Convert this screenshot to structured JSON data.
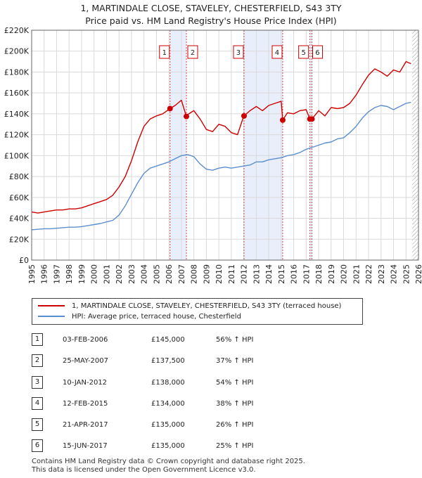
{
  "title_line1": "1, MARTINDALE CLOSE, STAVELEY, CHESTERFIELD, S43 3TY",
  "title_line2": "Price paid vs. HM Land Registry's House Price Index (HPI)",
  "colors": {
    "red": "#cc0000",
    "blue": "#5b8fcf",
    "grid": "#d9d9d9",
    "shade": "#e8eefa"
  },
  "chart_data": {
    "type": "line",
    "xlim": [
      1995,
      2026
    ],
    "ylim": [
      0,
      220000
    ],
    "y_ticks": [
      0,
      20000,
      40000,
      60000,
      80000,
      100000,
      120000,
      140000,
      160000,
      180000,
      200000,
      220000
    ],
    "y_tick_labels": [
      "£0",
      "£20K",
      "£40K",
      "£60K",
      "£80K",
      "£100K",
      "£120K",
      "£140K",
      "£160K",
      "£180K",
      "£200K",
      "£220K"
    ],
    "x_ticks": [
      1995,
      1996,
      1997,
      1998,
      1999,
      2000,
      2001,
      2002,
      2003,
      2004,
      2005,
      2006,
      2007,
      2008,
      2009,
      2010,
      2011,
      2012,
      2013,
      2014,
      2015,
      2016,
      2017,
      2018,
      2019,
      2020,
      2021,
      2022,
      2023,
      2024,
      2025,
      2026
    ],
    "x_tick_labels": [
      "1995",
      "1996",
      "1997",
      "1998",
      "1999",
      "2000",
      "2001",
      "2002",
      "2003",
      "2004",
      "2005",
      "2006",
      "2007",
      "2008",
      "2009",
      "2010",
      "2011",
      "2012",
      "2013",
      "2014",
      "2015",
      "2016",
      "2017",
      "2018",
      "2019",
      "2020",
      "2021",
      "2022",
      "2023",
      "2024",
      "2025",
      "2026"
    ],
    "series": [
      {
        "name": "1, MARTINDALE CLOSE, STAVELEY, CHESTERFIELD, S43 3TY (terraced house)",
        "color": "#cc0000",
        "x": [
          1995.0,
          1995.5,
          1996.0,
          1996.5,
          1997.0,
          1997.5,
          1998.0,
          1998.5,
          1999.0,
          1999.5,
          2000.0,
          2000.5,
          2001.0,
          2001.5,
          2002.0,
          2002.5,
          2003.0,
          2003.5,
          2004.0,
          2004.5,
          2005.0,
          2005.5,
          2006.09,
          2006.5,
          2007.0,
          2007.4,
          2007.6,
          2008.0,
          2008.5,
          2009.0,
          2009.5,
          2010.0,
          2010.5,
          2011.0,
          2011.5,
          2012.0,
          2012.02,
          2012.5,
          2013.0,
          2013.5,
          2014.0,
          2014.5,
          2015.0,
          2015.12,
          2015.5,
          2016.0,
          2016.5,
          2017.0,
          2017.3,
          2017.46,
          2017.8,
          2018.0,
          2018.5,
          2019.0,
          2019.5,
          2020.0,
          2020.5,
          2021.0,
          2021.5,
          2022.0,
          2022.5,
          2023.0,
          2023.5,
          2024.0,
          2024.5,
          2025.0,
          2025.4
        ],
        "y": [
          46000,
          45000,
          46000,
          47000,
          48000,
          48000,
          49000,
          49000,
          50000,
          52000,
          54000,
          56000,
          58000,
          62000,
          70000,
          80000,
          95000,
          113000,
          128000,
          135000,
          138000,
          140000,
          145000,
          148000,
          153000,
          137500,
          140000,
          143000,
          135000,
          125000,
          123000,
          130000,
          128000,
          122000,
          120000,
          138000,
          138000,
          143000,
          147000,
          143000,
          148000,
          150000,
          152000,
          134000,
          141000,
          140000,
          143000,
          144000,
          135000,
          135000,
          140000,
          143000,
          138000,
          146000,
          145000,
          146000,
          150000,
          158000,
          168000,
          177000,
          183000,
          180000,
          176000,
          182000,
          180000,
          190000,
          188000
        ]
      },
      {
        "name": "HPI: Average price, terraced house, Chesterfield",
        "color": "#5b8fcf",
        "x": [
          1995.0,
          1995.5,
          1996.0,
          1996.5,
          1997.0,
          1997.5,
          1998.0,
          1998.5,
          1999.0,
          1999.5,
          2000.0,
          2000.5,
          2001.0,
          2001.5,
          2002.0,
          2002.5,
          2003.0,
          2003.5,
          2004.0,
          2004.5,
          2005.0,
          2005.5,
          2006.0,
          2006.5,
          2007.0,
          2007.5,
          2008.0,
          2008.5,
          2009.0,
          2009.5,
          2010.0,
          2010.5,
          2011.0,
          2011.5,
          2012.0,
          2012.5,
          2013.0,
          2013.5,
          2014.0,
          2014.5,
          2015.0,
          2015.5,
          2016.0,
          2016.5,
          2017.0,
          2017.5,
          2018.0,
          2018.5,
          2019.0,
          2019.5,
          2020.0,
          2020.5,
          2021.0,
          2021.5,
          2022.0,
          2022.5,
          2023.0,
          2023.5,
          2024.0,
          2024.5,
          2025.0,
          2025.4
        ],
        "y": [
          29000,
          29500,
          30000,
          30000,
          30500,
          31000,
          31500,
          31500,
          32000,
          33000,
          34000,
          35000,
          36500,
          38000,
          43000,
          52000,
          63000,
          74000,
          83000,
          88000,
          90000,
          92000,
          94000,
          97000,
          100000,
          101000,
          99000,
          92000,
          87000,
          86000,
          88000,
          89000,
          88000,
          89000,
          90000,
          91000,
          94000,
          94000,
          96000,
          97000,
          98000,
          100000,
          101000,
          103000,
          106000,
          108000,
          110000,
          112000,
          113000,
          116000,
          117000,
          122000,
          128000,
          136000,
          142000,
          146000,
          148000,
          147000,
          144000,
          147000,
          150000,
          151000
        ]
      }
    ],
    "sale_markers": [
      {
        "id": "1",
        "x": 2006.09,
        "y": 145000
      },
      {
        "id": "2",
        "x": 2007.4,
        "y": 137500
      },
      {
        "id": "3",
        "x": 2012.02,
        "y": 138000
      },
      {
        "id": "4",
        "x": 2015.12,
        "y": 134000
      },
      {
        "id": "5",
        "x": 2017.3,
        "y": 135000
      },
      {
        "id": "6",
        "x": 2017.46,
        "y": 135000
      }
    ],
    "shaded_ranges": [
      [
        2006.09,
        2007.4
      ],
      [
        2012.02,
        2015.12
      ],
      [
        2017.3,
        2017.46
      ]
    ],
    "hatched_from": 2025.5
  },
  "legend": {
    "red_label": "1, MARTINDALE CLOSE, STAVELEY, CHESTERFIELD, S43 3TY (terraced house)",
    "blue_label": "HPI: Average price, terraced house, Chesterfield"
  },
  "transactions": [
    {
      "num": "1",
      "date": "03-FEB-2006",
      "price": "£145,000",
      "hpi": "56% ↑ HPI"
    },
    {
      "num": "2",
      "date": "25-MAY-2007",
      "price": "£137,500",
      "hpi": "37% ↑ HPI"
    },
    {
      "num": "3",
      "date": "10-JAN-2012",
      "price": "£138,000",
      "hpi": "54% ↑ HPI"
    },
    {
      "num": "4",
      "date": "12-FEB-2015",
      "price": "£134,000",
      "hpi": "38% ↑ HPI"
    },
    {
      "num": "5",
      "date": "21-APR-2017",
      "price": "£135,000",
      "hpi": "26% ↑ HPI"
    },
    {
      "num": "6",
      "date": "15-JUN-2017",
      "price": "£135,000",
      "hpi": "25% ↑ HPI"
    }
  ],
  "footer_line1": "Contains HM Land Registry data © Crown copyright and database right 2025.",
  "footer_line2": "This data is licensed under the Open Government Licence v3.0."
}
